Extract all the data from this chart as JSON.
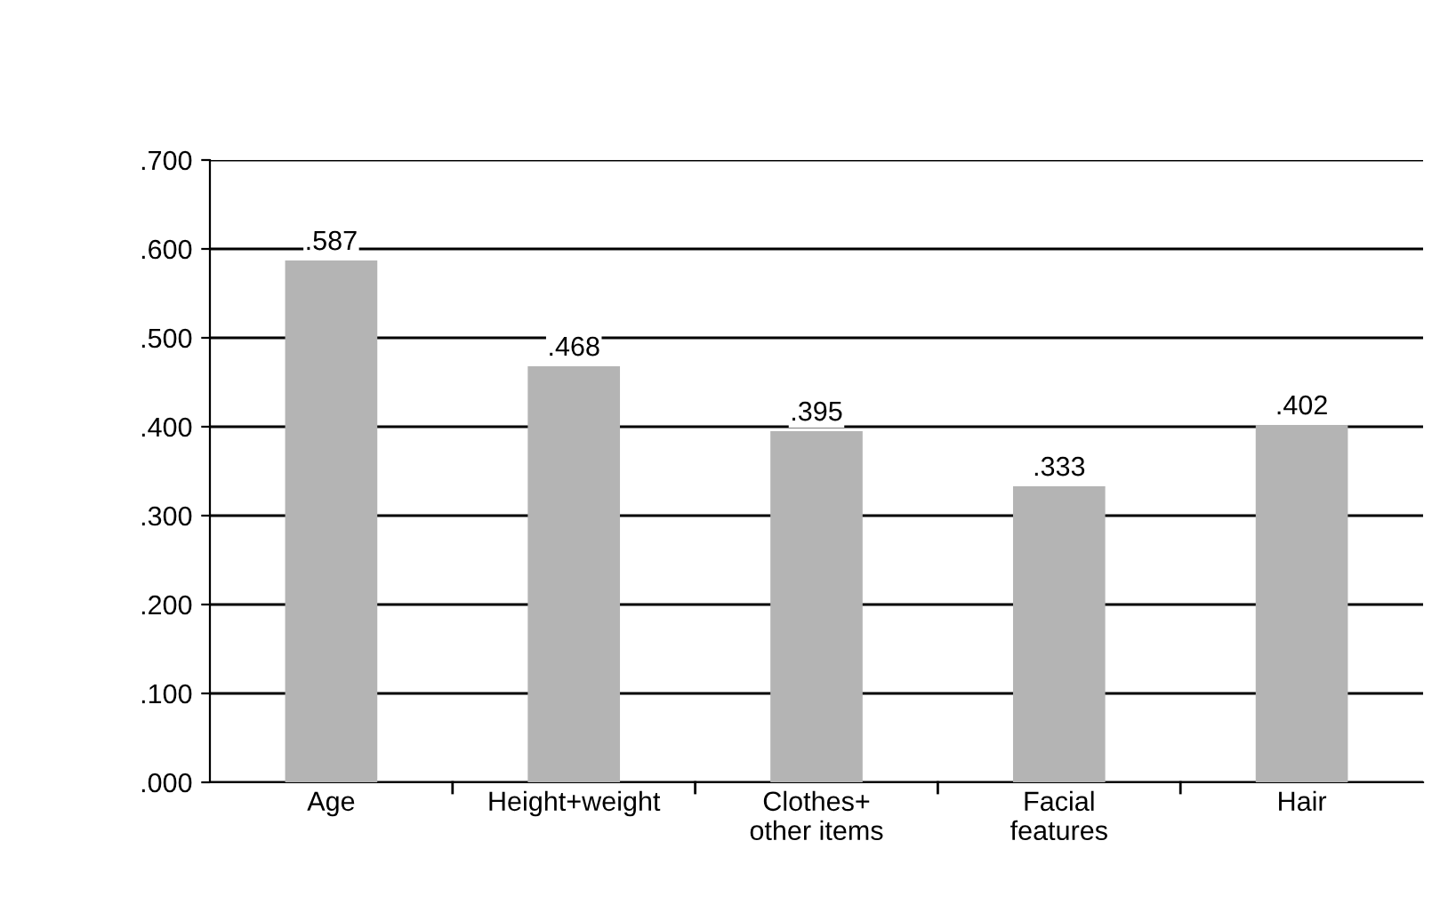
{
  "chart_data": {
    "type": "bar",
    "categories": [
      "Age",
      "Height+weight",
      "Clothes+\nother items",
      "Facial\nfeatures",
      "Hair"
    ],
    "values": [
      0.587,
      0.468,
      0.395,
      0.333,
      0.402
    ],
    "value_labels": [
      ".587",
      ".468",
      ".395",
      ".333",
      ".402"
    ],
    "color": "#b4b4b4",
    "ylim": [
      0,
      0.7
    ],
    "yticks": [
      {
        "value": 0,
        "label": ".000"
      },
      {
        "value": 0.1,
        "label": ".100"
      },
      {
        "value": 0.2,
        "label": ".200"
      },
      {
        "value": 0.3,
        "label": ".300"
      },
      {
        "value": 0.4,
        "label": ".400"
      },
      {
        "value": 0.5,
        "label": ".500"
      },
      {
        "value": 0.6,
        "label": ".600"
      },
      {
        "value": 0.7,
        "label": ".700"
      }
    ],
    "grid": "y"
  }
}
